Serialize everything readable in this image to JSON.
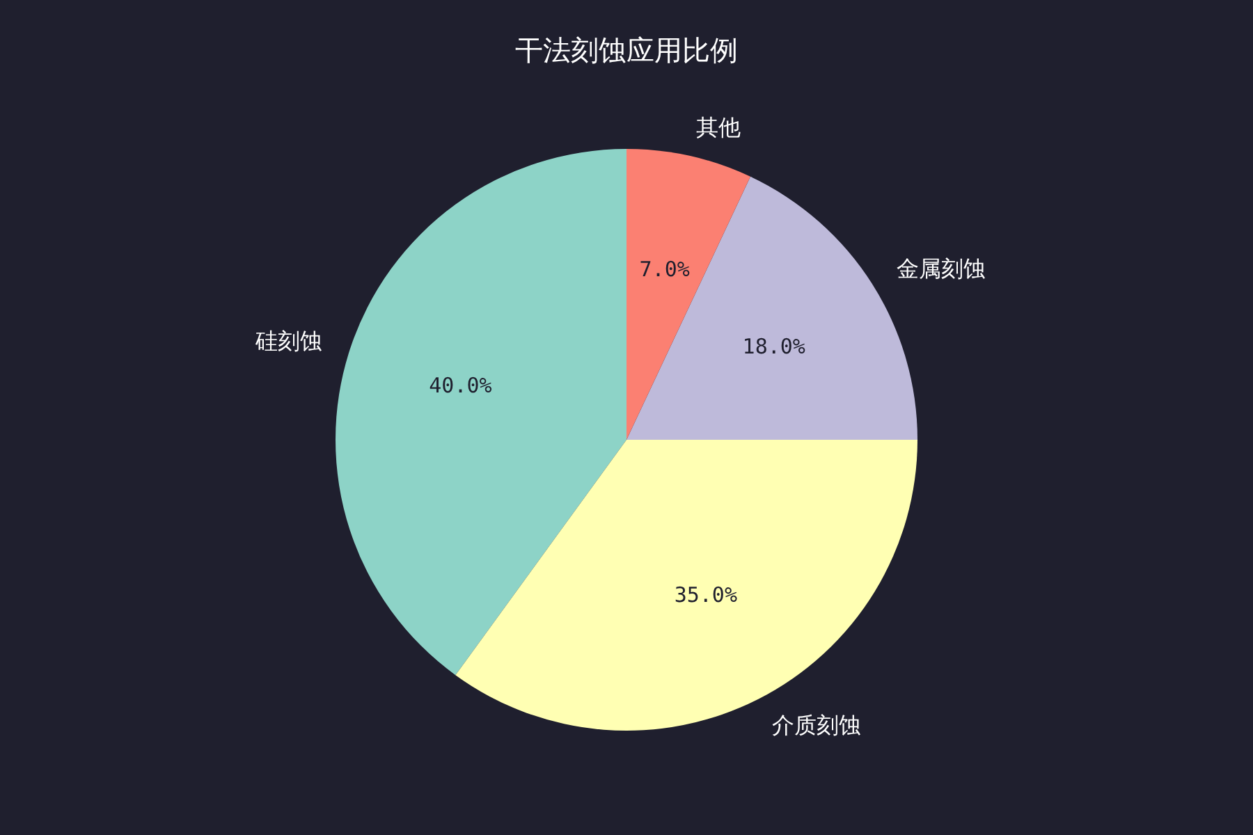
{
  "chart_data": {
    "type": "pie",
    "title": "干法刻蚀应用比例",
    "categories": [
      "硅刻蚀",
      "介质刻蚀",
      "金属刻蚀",
      "其他"
    ],
    "values": [
      40,
      35,
      18,
      7
    ],
    "colors": [
      "#8dd3c7",
      "#ffffb3",
      "#bebada",
      "#fb8072"
    ],
    "value_labels": [
      "40.0%",
      "35.0%",
      "18.0%",
      "7.0%"
    ]
  }
}
